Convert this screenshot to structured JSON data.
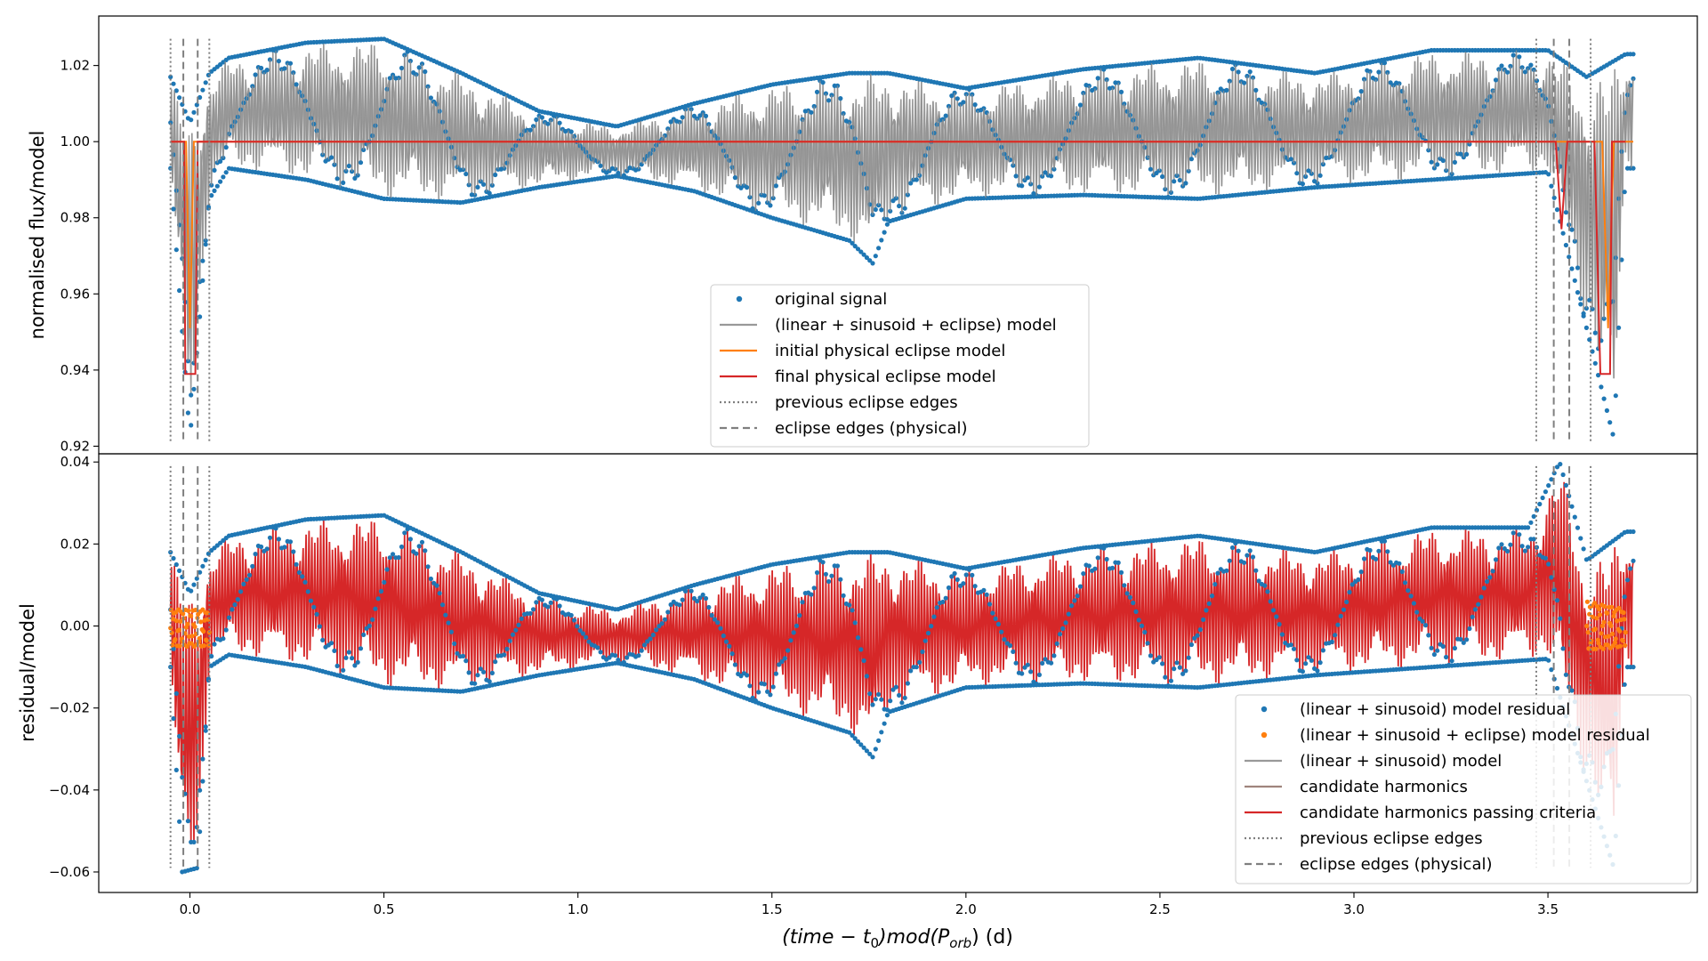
{
  "chart_data": [
    {
      "type": "line",
      "panel": "top",
      "ylabel": "normalised flux/model",
      "ylim": [
        0.918,
        1.033
      ],
      "yticks": [
        0.92,
        0.94,
        0.96,
        0.98,
        1.0,
        1.02
      ],
      "ytick_labels": [
        "0.92",
        "0.94",
        "0.96",
        "0.98",
        "1.00",
        "1.02"
      ],
      "xlim": [
        -0.235,
        3.885
      ],
      "grid": false,
      "legend_position": "bottom-center",
      "series": [
        {
          "name": "original signal",
          "kind": "scatter",
          "color": "#1f77b4",
          "envelope_upper": [
            [
              -0.05,
              1.017
            ],
            [
              0.0,
              1.005
            ],
            [
              0.05,
              1.018
            ],
            [
              0.1,
              1.022
            ],
            [
              0.3,
              1.026
            ],
            [
              0.5,
              1.027
            ],
            [
              0.7,
              1.018
            ],
            [
              0.9,
              1.008
            ],
            [
              1.1,
              1.004
            ],
            [
              1.3,
              1.01
            ],
            [
              1.5,
              1.015
            ],
            [
              1.7,
              1.018
            ],
            [
              1.8,
              1.018
            ],
            [
              2.0,
              1.014
            ],
            [
              2.3,
              1.019
            ],
            [
              2.6,
              1.022
            ],
            [
              2.9,
              1.018
            ],
            [
              3.2,
              1.024
            ],
            [
              3.5,
              1.024
            ],
            [
              3.6,
              1.017
            ],
            [
              3.7,
              1.023
            ]
          ],
          "envelope_lower": [
            [
              -0.05,
              0.993
            ],
            [
              0.0,
              0.922
            ],
            [
              0.05,
              0.985
            ],
            [
              0.1,
              0.993
            ],
            [
              0.3,
              0.99
            ],
            [
              0.5,
              0.985
            ],
            [
              0.7,
              0.984
            ],
            [
              0.9,
              0.988
            ],
            [
              1.1,
              0.991
            ],
            [
              1.3,
              0.987
            ],
            [
              1.5,
              0.98
            ],
            [
              1.7,
              0.974
            ],
            [
              1.76,
              0.968
            ],
            [
              1.8,
              0.979
            ],
            [
              2.0,
              0.985
            ],
            [
              2.3,
              0.986
            ],
            [
              2.6,
              0.985
            ],
            [
              2.9,
              0.988
            ],
            [
              3.2,
              0.99
            ],
            [
              3.5,
              0.992
            ],
            [
              3.67,
              0.922
            ],
            [
              3.7,
              0.993
            ]
          ]
        },
        {
          "name": "(linear + sinusoid + eclipse) model",
          "kind": "line",
          "color": "#999999"
        },
        {
          "name": "initial physical eclipse model",
          "kind": "line",
          "color": "#ff7f0e",
          "points": [
            [
              -0.05,
              1.0
            ],
            [
              -0.01,
              1.0
            ],
            [
              0.0,
              0.951
            ],
            [
              0.01,
              1.0
            ],
            [
              3.64,
              1.0
            ],
            [
              3.655,
              0.951
            ],
            [
              3.67,
              1.0
            ],
            [
              3.72,
              1.0
            ]
          ]
        },
        {
          "name": "final physical eclipse model",
          "kind": "line",
          "color": "#d62728",
          "points": [
            [
              -0.05,
              1.0
            ],
            [
              -0.015,
              1.0
            ],
            [
              -0.012,
              0.939
            ],
            [
              0.014,
              0.939
            ],
            [
              0.02,
              1.0
            ],
            [
              3.52,
              1.0
            ],
            [
              3.535,
              0.977
            ],
            [
              3.55,
              1.0
            ],
            [
              3.62,
              1.0
            ],
            [
              3.635,
              0.939
            ],
            [
              3.66,
              0.939
            ],
            [
              3.665,
              1.0
            ],
            [
              3.7,
              1.0
            ]
          ]
        },
        {
          "name": "previous eclipse edges",
          "kind": "vline-dotted",
          "color": "#7f7f7f",
          "x": [
            -0.05,
            0.05,
            3.47,
            3.61
          ]
        },
        {
          "name": "eclipse edges (physical)",
          "kind": "vline-dashed",
          "color": "#7f7f7f",
          "x": [
            -0.017,
            0.02,
            3.515,
            3.555
          ]
        }
      ]
    },
    {
      "type": "line",
      "panel": "bottom",
      "xlabel": "(time − t0)mod(Porb) (d)",
      "ylabel": "residual/model",
      "ylim": [
        -0.065,
        0.042
      ],
      "yticks": [
        -0.06,
        -0.04,
        -0.02,
        0.0,
        0.02,
        0.04
      ],
      "ytick_labels": [
        "−0.06",
        "−0.04",
        "−0.02",
        "0.00",
        "0.02",
        "0.04"
      ],
      "xlim": [
        -0.235,
        3.885
      ],
      "xticks": [
        0.0,
        0.5,
        1.0,
        1.5,
        2.0,
        2.5,
        3.0,
        3.5
      ],
      "xtick_labels": [
        "0.0",
        "0.5",
        "1.0",
        "1.5",
        "2.0",
        "2.5",
        "3.0",
        "3.5"
      ],
      "grid": false,
      "legend_position": "bottom-right",
      "series": [
        {
          "name": "(linear + sinusoid) model residual",
          "kind": "scatter",
          "color": "#1f77b4",
          "envelope_upper": [
            [
              -0.05,
              0.018
            ],
            [
              0.0,
              0.008
            ],
            [
              0.05,
              0.018
            ],
            [
              0.1,
              0.022
            ],
            [
              0.3,
              0.026
            ],
            [
              0.5,
              0.027
            ],
            [
              0.7,
              0.018
            ],
            [
              0.9,
              0.008
            ],
            [
              1.1,
              0.004
            ],
            [
              1.3,
              0.01
            ],
            [
              1.5,
              0.015
            ],
            [
              1.7,
              0.018
            ],
            [
              1.8,
              0.018
            ],
            [
              2.0,
              0.014
            ],
            [
              2.3,
              0.019
            ],
            [
              2.6,
              0.022
            ],
            [
              2.9,
              0.018
            ],
            [
              3.2,
              0.024
            ],
            [
              3.45,
              0.024
            ],
            [
              3.53,
              0.04
            ],
            [
              3.6,
              0.016
            ],
            [
              3.7,
              0.023
            ]
          ],
          "envelope_lower": [
            [
              -0.05,
              -0.01
            ],
            [
              -0.02,
              -0.06
            ],
            [
              0.02,
              -0.059
            ],
            [
              0.05,
              -0.01
            ],
            [
              0.1,
              -0.007
            ],
            [
              0.3,
              -0.01
            ],
            [
              0.5,
              -0.015
            ],
            [
              0.7,
              -0.016
            ],
            [
              0.9,
              -0.012
            ],
            [
              1.1,
              -0.009
            ],
            [
              1.3,
              -0.013
            ],
            [
              1.5,
              -0.02
            ],
            [
              1.7,
              -0.026
            ],
            [
              1.76,
              -0.032
            ],
            [
              1.8,
              -0.021
            ],
            [
              2.0,
              -0.015
            ],
            [
              2.3,
              -0.014
            ],
            [
              2.6,
              -0.015
            ],
            [
              2.9,
              -0.012
            ],
            [
              3.2,
              -0.01
            ],
            [
              3.5,
              -0.008
            ],
            [
              3.67,
              -0.059
            ],
            [
              3.7,
              -0.01
            ]
          ]
        },
        {
          "name": "(linear + sinusoid + eclipse) model residual",
          "kind": "scatter",
          "color": "#ff7f0e",
          "envelope_upper": [
            [
              -0.05,
              0.004
            ],
            [
              0.05,
              0.004
            ],
            [
              3.6,
              0.006
            ],
            [
              3.7,
              0.004
            ]
          ],
          "envelope_lower": [
            [
              -0.05,
              -0.005
            ],
            [
              0.05,
              -0.005
            ],
            [
              3.6,
              -0.006
            ],
            [
              3.7,
              -0.005
            ]
          ]
        },
        {
          "name": "(linear + sinusoid) model",
          "kind": "line",
          "color": "#999999"
        },
        {
          "name": "candidate harmonics",
          "kind": "line",
          "color": "#9f847d"
        },
        {
          "name": "candidate harmonics passing criteria",
          "kind": "line",
          "color": "#d62728"
        },
        {
          "name": "previous eclipse edges",
          "kind": "vline-dotted",
          "color": "#7f7f7f",
          "x": [
            -0.05,
            0.05,
            3.47,
            3.61
          ]
        },
        {
          "name": "eclipse edges (physical)",
          "kind": "vline-dashed",
          "color": "#7f7f7f",
          "x": [
            -0.017,
            0.02,
            3.515,
            3.555
          ]
        }
      ]
    }
  ]
}
